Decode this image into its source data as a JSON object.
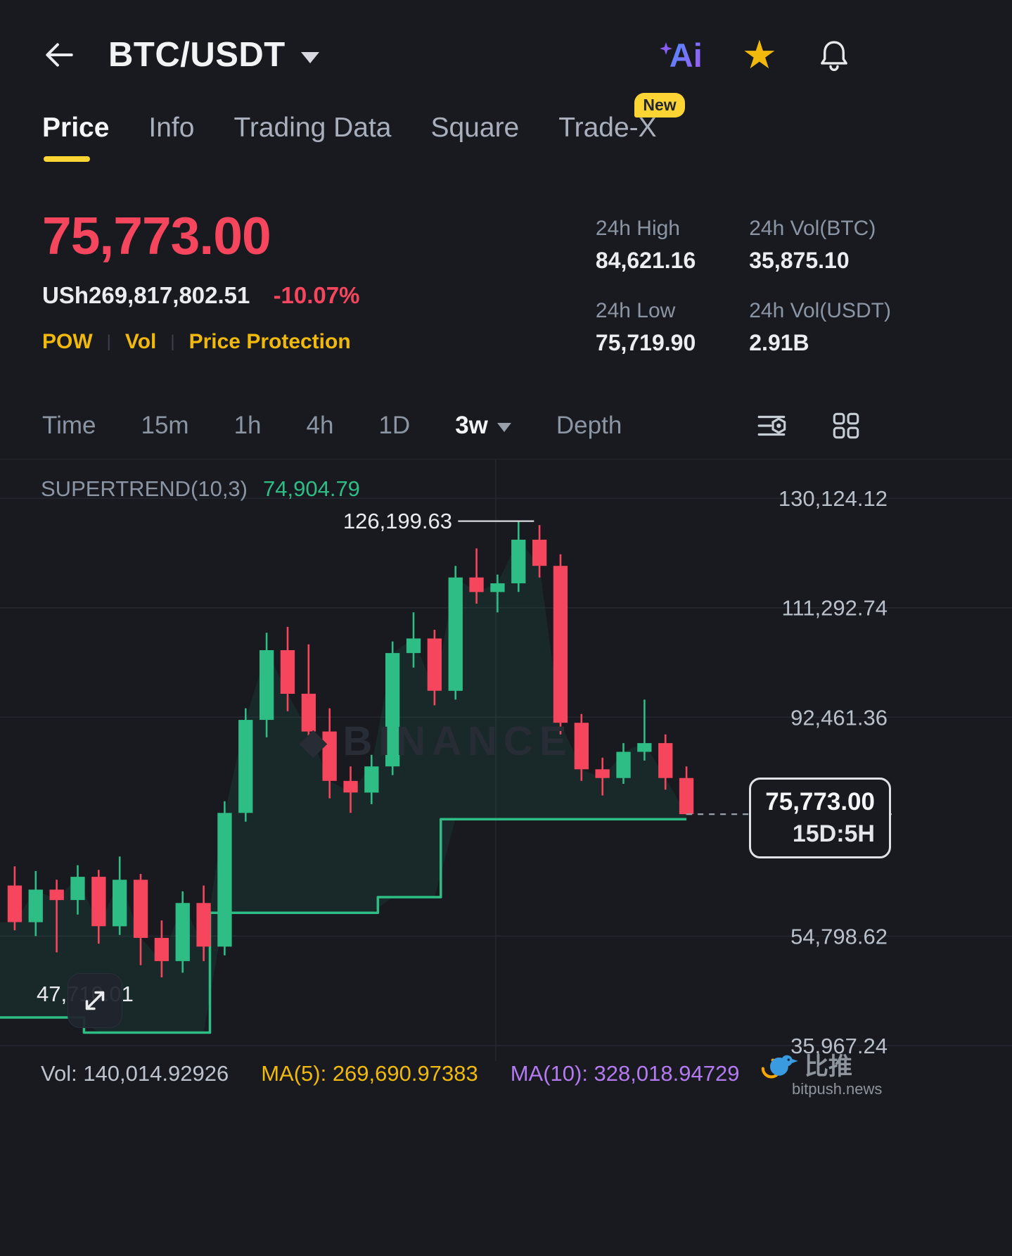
{
  "header": {
    "title": "BTC/USDT",
    "ai_label": "Ai"
  },
  "tabs": [
    {
      "label": "Price",
      "active": true
    },
    {
      "label": "Info"
    },
    {
      "label": "Trading Data"
    },
    {
      "label": "Square"
    },
    {
      "label": "Trade-X",
      "badge": "New"
    }
  ],
  "price_panel": {
    "last_price": "75,773.00",
    "fiat_value": "USh269,817,802.51",
    "change_percent": "-10.07%",
    "tags": [
      "POW",
      "Vol",
      "Price Protection"
    ],
    "tag_separator": "|",
    "stats": [
      {
        "label": "24h High",
        "value": "84,621.16"
      },
      {
        "label": "24h Vol(BTC)",
        "value": "35,875.10"
      },
      {
        "label": "24h Low",
        "value": "75,719.90"
      },
      {
        "label": "24h Vol(USDT)",
        "value": "2.91B"
      }
    ]
  },
  "timeframe_bar": {
    "items": [
      "Time",
      "15m",
      "1h",
      "4h",
      "1D"
    ],
    "selected": "3w",
    "depth": "Depth"
  },
  "watermark": "BINANCE",
  "chart_data": {
    "type": "candlestick",
    "pair": "BTC/USDT",
    "interval": "3w",
    "indicator_label": "SUPERTREND(10,3)",
    "indicator_value": "74,904.79",
    "ylim": [
      33300,
      136800
    ],
    "gridlines": [
      {
        "value": 130124.12,
        "label": "130,124.12"
      },
      {
        "value": 111292.74,
        "label": "111,292.74"
      },
      {
        "value": 92461.36,
        "label": "92,461.36"
      },
      {
        "value": 54798.62,
        "label": "54,798.62"
      },
      {
        "value": 35967.24,
        "label": "35,967.24"
      }
    ],
    "current_price": 75773.0,
    "current_price_label": "75,773.00",
    "countdown": "15D:5H",
    "high_annotation": {
      "value": 126199.63,
      "label": "126,199.63"
    },
    "low_annotation": {
      "value": 47710.01,
      "label": "47,710.01"
    },
    "colors": {
      "up": "#2EBD85",
      "down": "#F6465D",
      "supertrend": "#2EBD85",
      "fill": "rgba(46,189,133,0.09)",
      "grid": "#242830",
      "axis_text": "#B9C0C9",
      "dashed": "#98A1AB"
    },
    "candles": [
      [
        63500,
        66800,
        55800,
        57200
      ],
      [
        57200,
        66000,
        54800,
        62800
      ],
      [
        62800,
        64500,
        52000,
        61000
      ],
      [
        61000,
        67000,
        58500,
        65000
      ],
      [
        65000,
        66200,
        53500,
        56500
      ],
      [
        56500,
        68500,
        55000,
        64500
      ],
      [
        64500,
        65500,
        49800,
        54500
      ],
      [
        54500,
        57500,
        47710,
        50500
      ],
      [
        50500,
        62500,
        48500,
        60500
      ],
      [
        60500,
        63500,
        50500,
        53000
      ],
      [
        53000,
        78000,
        51500,
        76000
      ],
      [
        76000,
        94000,
        74500,
        92000
      ],
      [
        92000,
        107000,
        89000,
        104000
      ],
      [
        104000,
        108000,
        93500,
        96500
      ],
      [
        96500,
        105000,
        87500,
        90000
      ],
      [
        90000,
        94000,
        78500,
        81500
      ],
      [
        81500,
        84000,
        76000,
        79500
      ],
      [
        79500,
        86000,
        77500,
        84000
      ],
      [
        84000,
        105500,
        82500,
        103500
      ],
      [
        103500,
        110500,
        101000,
        106000
      ],
      [
        106000,
        107500,
        94500,
        97000
      ],
      [
        97000,
        118500,
        95500,
        116500
      ],
      [
        116500,
        121500,
        112000,
        114000
      ],
      [
        114000,
        117000,
        110500,
        115500
      ],
      [
        115500,
        126199.63,
        114000,
        123000
      ],
      [
        123000,
        125500,
        116500,
        118500
      ],
      [
        118500,
        120500,
        89500,
        91500
      ],
      [
        91500,
        93000,
        81500,
        83500
      ],
      [
        83500,
        85500,
        79000,
        82000
      ],
      [
        82000,
        88000,
        81000,
        86500
      ],
      [
        86500,
        95500,
        85000,
        88000
      ],
      [
        88000,
        89500,
        80000,
        82000
      ],
      [
        82000,
        84000,
        75719.9,
        75773
      ]
    ],
    "supertrend": [
      40800,
      40800,
      40800,
      40800,
      38200,
      38200,
      38200,
      38200,
      38200,
      38200,
      58800,
      58800,
      58800,
      58800,
      58800,
      58800,
      58800,
      58800,
      61500,
      61500,
      61500,
      74904.79,
      74904.79,
      74904.79,
      74904.79,
      74904.79,
      74904.79,
      74904.79,
      74904.79,
      74904.79,
      74904.79,
      74904.79,
      74904.79
    ]
  },
  "footer": {
    "vol": "Vol: 140,014.92926",
    "ma5": "MA(5): 269,690.97383",
    "ma10": "MA(10): 328,018.94729"
  },
  "bitpush": {
    "cn": "比推",
    "site": "bitpush.news"
  }
}
